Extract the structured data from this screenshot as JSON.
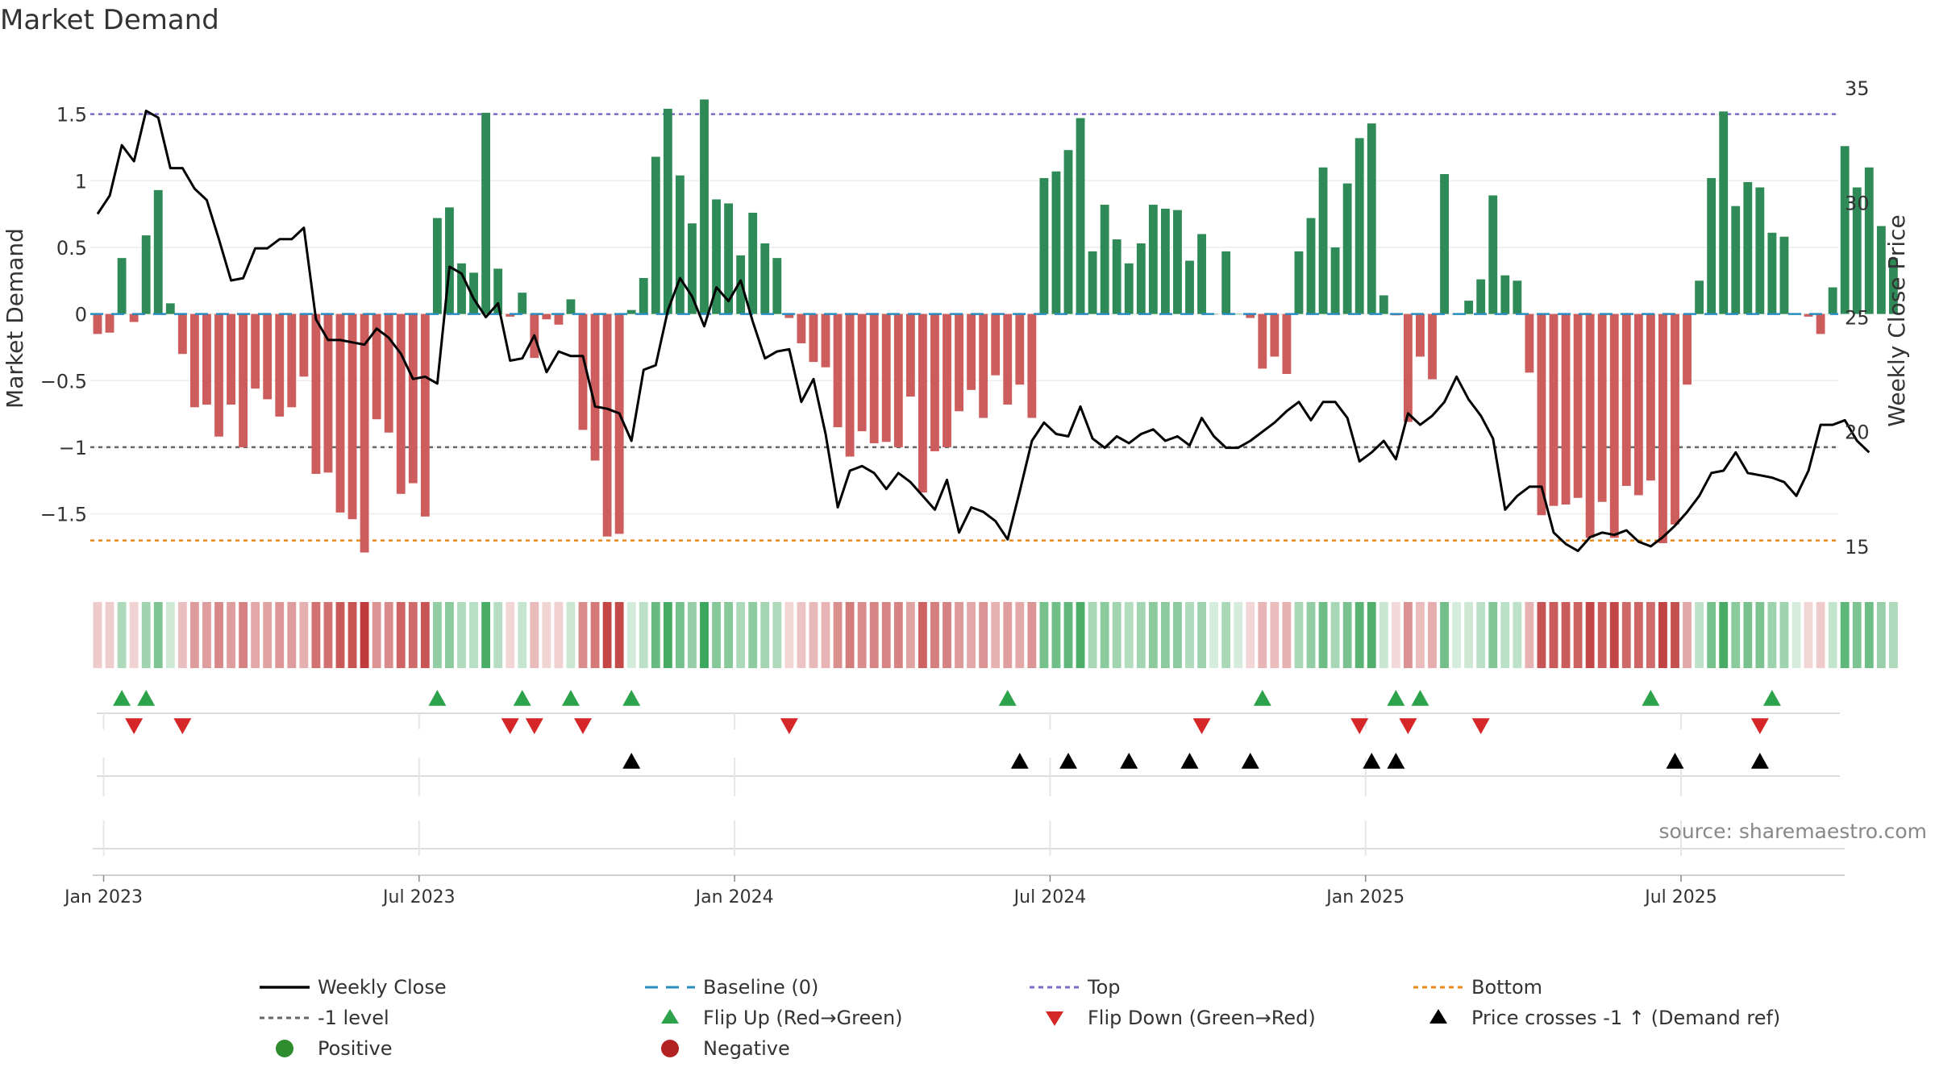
{
  "chart_data": {
    "type": "bar",
    "title": "Market Demand",
    "ylabel_left": "Market Demand",
    "ylabel_right": "Weekly Close Price",
    "ylim_left": [
      -1.95,
      1.8
    ],
    "ylim_right": [
      13.8,
      35.6
    ],
    "yticks_left": [
      1.5,
      1,
      0.5,
      0,
      -0.5,
      -1,
      -1.5
    ],
    "ytick_labels_left": [
      "1.5",
      "1",
      "0.5",
      "0",
      "−0.5",
      "−1",
      "−1.5"
    ],
    "yticks_right": [
      35,
      30,
      25,
      20,
      15
    ],
    "ytick_labels_right": [
      "35",
      "30",
      "25",
      "20",
      "15"
    ],
    "x_tick_labels": [
      "Jan 2023",
      "Jul 2023",
      "Jan 2024",
      "Jul 2024",
      "Jan 2025",
      "Jul 2025"
    ],
    "x_tick_weeks": [
      0.5,
      26.5,
      52.5,
      78.5,
      104.5,
      130.5
    ],
    "reference_lines": {
      "top": 1.5,
      "minus_one": -1,
      "bottom": -1.7,
      "baseline": 0
    },
    "demand": [
      -0.15,
      -0.14,
      0.42,
      -0.06,
      0.59,
      0.93,
      0.08,
      -0.3,
      -0.7,
      -0.68,
      -0.92,
      -0.68,
      -1.0,
      -0.56,
      -0.64,
      -0.77,
      -0.7,
      -0.47,
      -1.2,
      -1.19,
      -1.49,
      -1.54,
      -1.79,
      -0.79,
      -0.89,
      -1.35,
      -1.27,
      -1.52,
      0.72,
      0.8,
      0.38,
      0.31,
      1.51,
      0.34,
      -0.02,
      0.16,
      -0.33,
      -0.04,
      -0.08,
      0.11,
      -0.87,
      -1.1,
      -1.67,
      -1.65,
      0.03,
      0.27,
      1.18,
      1.54,
      1.04,
      0.68,
      1.61,
      0.86,
      0.83,
      0.44,
      0.76,
      0.53,
      0.42,
      -0.03,
      -0.22,
      -0.36,
      -0.4,
      -0.85,
      -1.07,
      -0.88,
      -0.97,
      -0.96,
      -1.0,
      -0.62,
      -1.34,
      -1.03,
      -1.0,
      -0.73,
      -0.57,
      -0.78,
      -0.46,
      -0.68,
      -0.53,
      -0.78,
      1.02,
      1.07,
      1.23,
      1.47,
      0.47,
      0.82,
      0.56,
      0.38,
      0.53,
      0.82,
      0.79,
      0.78,
      0.4,
      0.6,
      0.0,
      0.47,
      0.0,
      -0.03,
      -0.41,
      -0.32,
      -0.45,
      0.47,
      0.72,
      1.1,
      0.5,
      0.98,
      1.32,
      1.43,
      0.14,
      -0.01,
      -0.81,
      -0.32,
      -0.49,
      1.05,
      0.0,
      0.1,
      0.26,
      0.89,
      0.29,
      0.25,
      -0.44,
      -1.51,
      -1.44,
      -1.43,
      -1.38,
      -1.68,
      -1.41,
      -1.68,
      -1.29,
      -1.36,
      -1.25,
      -1.72,
      -1.58,
      -0.53,
      0.25,
      1.02,
      1.52,
      0.81,
      0.99,
      0.95,
      0.61,
      0.58,
      0.0,
      -0.02,
      -0.15,
      0.2,
      1.26,
      0.95,
      1.1,
      0.66,
      0.42
    ],
    "weekly_close": [
      29.5,
      30.3,
      32.5,
      31.8,
      34.0,
      33.7,
      31.5,
      31.5,
      30.6,
      30.1,
      28.4,
      26.6,
      26.7,
      28.0,
      28.0,
      28.4,
      28.4,
      28.9,
      24.9,
      24.0,
      24.0,
      23.9,
      23.8,
      24.5,
      24.1,
      23.4,
      22.3,
      22.4,
      22.1,
      27.2,
      26.9,
      25.8,
      25.0,
      25.6,
      23.1,
      23.2,
      24.2,
      22.6,
      23.5,
      23.3,
      23.3,
      21.1,
      21.0,
      20.8,
      19.6,
      22.7,
      22.9,
      25.3,
      26.7,
      25.9,
      24.6,
      26.3,
      25.7,
      26.6,
      24.8,
      23.2,
      23.5,
      23.6,
      21.3,
      22.3,
      19.9,
      16.7,
      18.3,
      18.5,
      18.2,
      17.5,
      18.2,
      17.8,
      17.2,
      16.6,
      17.9,
      15.6,
      16.7,
      16.5,
      16.1,
      15.3,
      17.4,
      19.6,
      20.4,
      19.9,
      19.8,
      21.1,
      19.7,
      19.3,
      19.8,
      19.5,
      19.9,
      20.1,
      19.6,
      19.8,
      19.4,
      20.6,
      19.8,
      19.3,
      19.3,
      19.6,
      20.0,
      20.4,
      20.9,
      21.3,
      20.5,
      21.3,
      21.3,
      20.6,
      18.7,
      19.1,
      19.6,
      18.8,
      20.8,
      20.3,
      20.7,
      21.3,
      22.4,
      21.4,
      20.7,
      19.7,
      16.6,
      17.2,
      17.6,
      17.6,
      15.6,
      15.1,
      14.8,
      15.4,
      15.6,
      15.5,
      15.7,
      15.2,
      15.0,
      15.4,
      15.9,
      16.5,
      17.2,
      18.2,
      18.3,
      19.1,
      18.2,
      18.1,
      18.0,
      17.8,
      17.2,
      18.3,
      20.3,
      20.3,
      20.5,
      19.6,
      19.1
    ],
    "flip_up_weeks": [
      2,
      4,
      28,
      35,
      39,
      44,
      75,
      96,
      107,
      109,
      128,
      138
    ],
    "flip_down_weeks": [
      3,
      7,
      34,
      36,
      40,
      57,
      91,
      104,
      108,
      114,
      137
    ],
    "price_cross_weeks": [
      44,
      76,
      80,
      85,
      90,
      95,
      105,
      107,
      130,
      137
    ],
    "legend": [
      "Weekly Close",
      "Baseline (0)",
      "Top",
      "Bottom",
      "-1 level",
      "Flip Up (Red→Green)",
      "Flip Down (Green→Red)",
      "Price crosses -1 ↑ (Demand ref)",
      "Positive",
      "Negative"
    ]
  },
  "source": "source: sharemaestro.com",
  "colors": {
    "positive_bar": "#2e8b57",
    "negative_bar": "#cd5c5c",
    "close_line": "#000000",
    "top_line": "#7b68c8",
    "bottom_line": "#e8891a",
    "minus_one_line": "#666666",
    "baseline": "#2a8cbf",
    "flip_up": "#2ca24a",
    "flip_down": "#d62728",
    "cross_marker": "#000000",
    "legend_positive": "#2e8b2e",
    "legend_negative": "#b22222"
  }
}
